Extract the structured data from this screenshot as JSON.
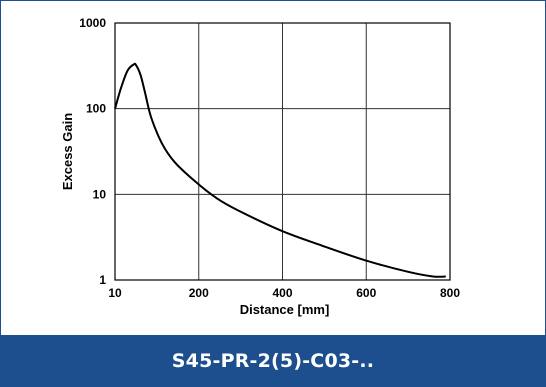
{
  "chart_data": {
    "type": "line",
    "xlabel": "Distance [mm]",
    "ylabel": "Excess Gain",
    "x_ticks": [
      "10",
      "200",
      "400",
      "600",
      "800"
    ],
    "y_ticks": [
      "1",
      "10",
      "100",
      "1000"
    ],
    "xlim": [
      10,
      800
    ],
    "ylim": [
      1,
      1000
    ],
    "y_scale": "log",
    "grid": true,
    "series": [
      {
        "x": [
          10,
          25,
          40,
          55,
          60,
          70,
          80,
          95,
          120,
          150,
          200,
          250,
          300,
          400,
          500,
          600,
          700,
          760,
          790
        ],
        "y": [
          100,
          180,
          280,
          330,
          320,
          250,
          160,
          80,
          40,
          24,
          14,
          9,
          6.5,
          3.8,
          2.5,
          1.7,
          1.25,
          1.1,
          1.1
        ]
      }
    ]
  },
  "banner": {
    "text": "S45-PR-2(5)-C03-..",
    "background": "#1d4f8f"
  }
}
